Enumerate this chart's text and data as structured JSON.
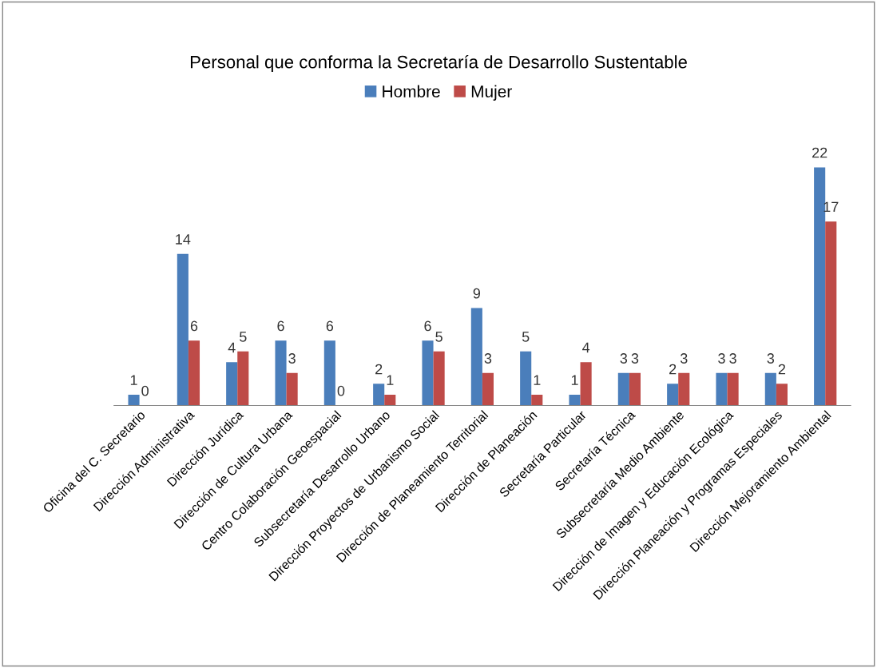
{
  "chart_data": {
    "type": "bar",
    "title": "Personal que conforma la Secretaría de Desarrollo Sustentable",
    "categories": [
      "Oficina del C. Secretario",
      "Dirección Administrativa",
      "Dirección Jurídica",
      "Dirección de Cultura Urbana",
      "Centro Colaboración Geoespacial",
      "Subsecretaría Desarrollo Urbano",
      "Dirección Proyectos de Urbanismo Social",
      "Dirección de Planeamiento Territorial",
      "Dirección de Planeación",
      "Secretaría Particular",
      "Secretaría Técnica",
      "Subsecretaría Medio Ambiente",
      "Dirección de Imagen y Educación Ecológica",
      "Dirección Planeación y Programas Especiales",
      "Dirección Mejoramiento Ambiental"
    ],
    "series": [
      {
        "name": "Hombre",
        "color": "#4a7ebb",
        "values": [
          1,
          14,
          4,
          6,
          6,
          2,
          6,
          9,
          5,
          1,
          3,
          2,
          3,
          3,
          22
        ]
      },
      {
        "name": "Mujer",
        "color": "#be4b48",
        "values": [
          0,
          6,
          5,
          3,
          0,
          1,
          5,
          3,
          1,
          4,
          3,
          3,
          3,
          2,
          17
        ]
      }
    ],
    "data_labels": true,
    "legend": "top",
    "grid": false
  }
}
